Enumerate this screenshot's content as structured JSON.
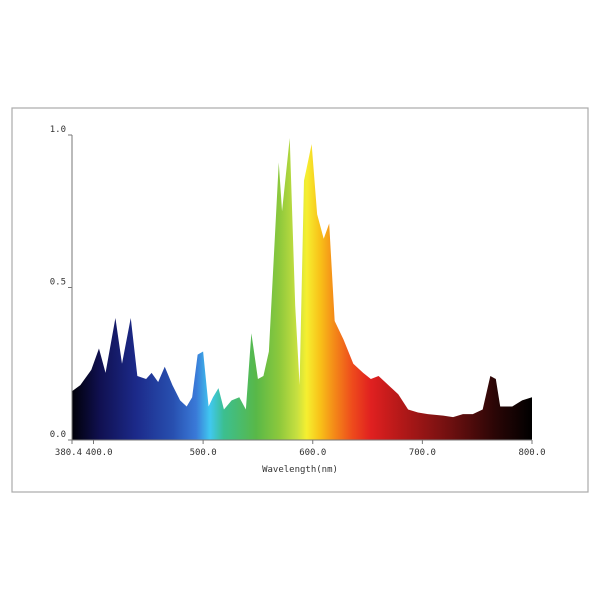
{
  "chart_data": {
    "type": "area",
    "xlabel": "Wavelength(nm)",
    "x": [
      380.4,
      388,
      392,
      398,
      405,
      411,
      420,
      426,
      434,
      440,
      448,
      453,
      459,
      465,
      472,
      479,
      485,
      490,
      495,
      500,
      505,
      509,
      514,
      519,
      526,
      533,
      539,
      544,
      550,
      555,
      560,
      569,
      572,
      579,
      584,
      588,
      592,
      599,
      604,
      610,
      615,
      620,
      628,
      637,
      646,
      653,
      660,
      669,
      678,
      687,
      696,
      705,
      719,
      728,
      737,
      746,
      755,
      762,
      767,
      771,
      782,
      791,
      800
    ],
    "values": [
      0.16,
      0.18,
      0.2,
      0.23,
      0.3,
      0.22,
      0.4,
      0.25,
      0.4,
      0.21,
      0.2,
      0.22,
      0.19,
      0.24,
      0.18,
      0.13,
      0.11,
      0.14,
      0.28,
      0.29,
      0.11,
      0.14,
      0.17,
      0.1,
      0.13,
      0.14,
      0.1,
      0.35,
      0.2,
      0.21,
      0.29,
      0.91,
      0.75,
      0.99,
      0.44,
      0.18,
      0.85,
      0.97,
      0.74,
      0.66,
      0.71,
      0.39,
      0.33,
      0.25,
      0.22,
      0.2,
      0.21,
      0.18,
      0.15,
      0.1,
      0.09,
      0.085,
      0.08,
      0.075,
      0.085,
      0.085,
      0.1,
      0.21,
      0.2,
      0.11,
      0.11,
      0.13,
      0.14
    ],
    "xlim": [
      380.4,
      800
    ],
    "ylim": [
      0,
      1
    ],
    "xticks": [
      380.4,
      {
        "value": 400,
        "label": "400.0"
      },
      {
        "value": 500,
        "label": "500.0"
      },
      {
        "value": 600,
        "label": "600.0"
      },
      {
        "value": 700,
        "label": "700.0"
      },
      {
        "value": 800,
        "label": "800.0"
      }
    ],
    "yticks": [
      {
        "value": 0,
        "label": "0.0"
      },
      0.5,
      {
        "value": 1,
        "label": "1.0"
      }
    ]
  }
}
